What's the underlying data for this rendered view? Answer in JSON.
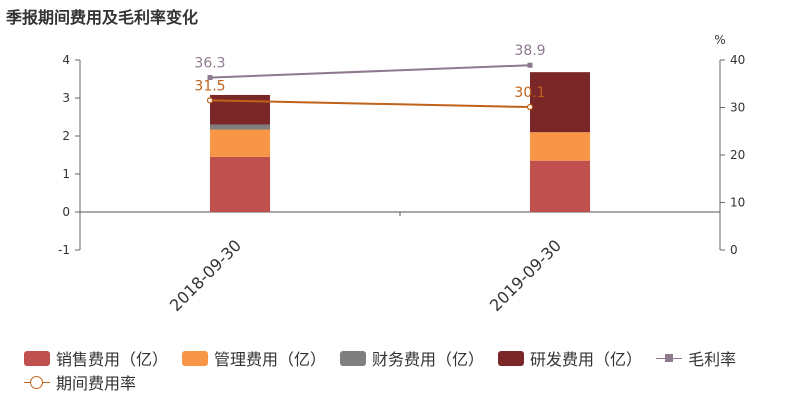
{
  "title": "季报期间费用及毛利率变化",
  "chart_data": {
    "type": "bar",
    "categories": [
      "2018-09-30",
      "2019-09-30"
    ],
    "series": [
      {
        "name": "销售费用（亿）",
        "type": "bar",
        "stack": true,
        "axis": "left",
        "color": "#c0504d",
        "values": [
          1.45,
          1.35
        ]
      },
      {
        "name": "管理费用（亿）",
        "type": "bar",
        "stack": true,
        "axis": "left",
        "color": "#f79646",
        "values": [
          0.72,
          0.75
        ]
      },
      {
        "name": "财务费用（亿）",
        "type": "bar",
        "stack": true,
        "axis": "left",
        "color": "#7f7f7f",
        "values": [
          0.13,
          0.0
        ]
      },
      {
        "name": "研发费用（亿）",
        "type": "bar",
        "stack": true,
        "axis": "left",
        "color": "#7b2727",
        "values": [
          0.78,
          1.58
        ]
      },
      {
        "name": "毛利率",
        "type": "line",
        "axis": "right",
        "color": "#8e7a8f",
        "marker": "square",
        "values": [
          36.3,
          38.9
        ],
        "labels": [
          "36.3",
          "38.9"
        ]
      },
      {
        "name": "期间费用率",
        "type": "line",
        "axis": "right",
        "color": "#c0621a",
        "marker": "circle",
        "values": [
          31.5,
          30.1
        ],
        "labels": [
          "31.5",
          "30.1"
        ]
      }
    ],
    "yaxis_left": {
      "ticks": [
        4,
        3,
        2,
        1,
        0,
        -1
      ],
      "range": [
        -1,
        4
      ]
    },
    "yaxis_right": {
      "unit": "%",
      "ticks": [
        40,
        30,
        20,
        10,
        0
      ],
      "range": [
        0,
        40
      ]
    },
    "legend_position": "bottom"
  }
}
